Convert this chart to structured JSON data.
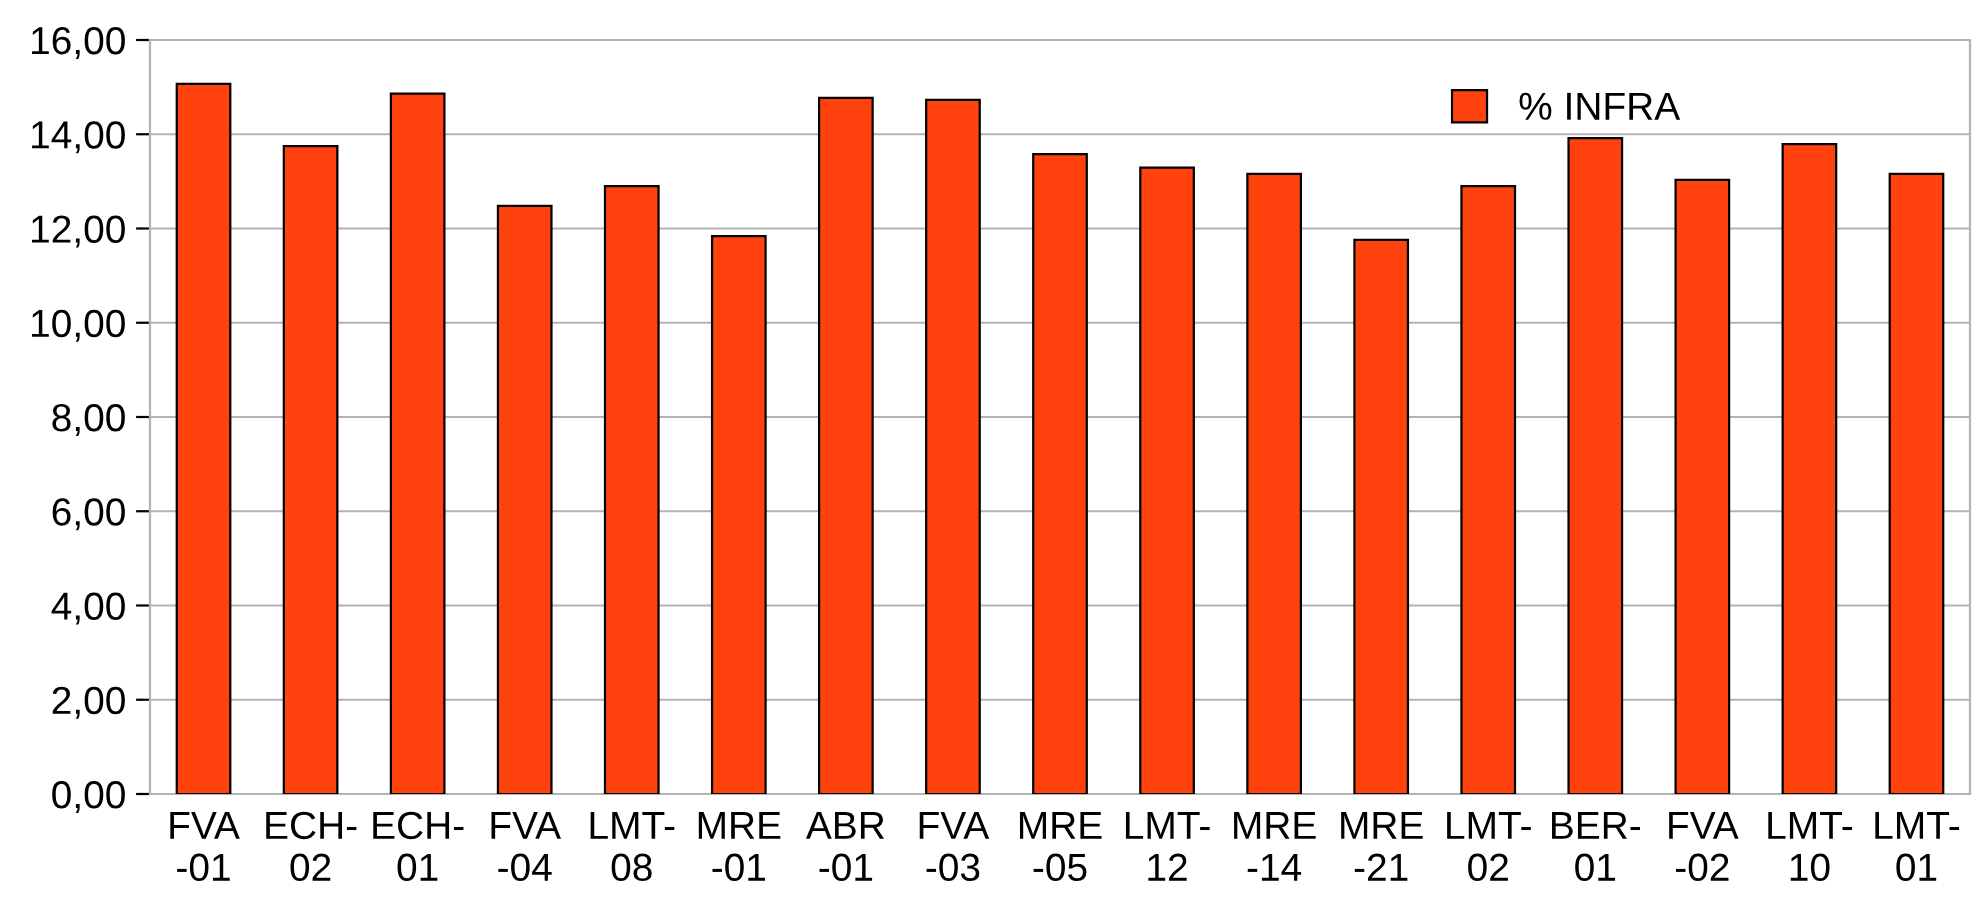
{
  "chart_data": {
    "type": "bar",
    "categories": [
      "FVA\n-01",
      "ECH-\n02",
      "ECH-\n01",
      "FVA\n-04",
      "LMT-\n08",
      "MRE\n-01",
      "ABR\n-01",
      "FVA\n-03",
      "MRE\n-05",
      "LMT-\n12",
      "MRE\n-14",
      "MRE\n-21",
      "LMT-\n02",
      "BER-\n01",
      "FVA\n-02",
      "LMT-\n10",
      "LMT-\n01"
    ],
    "series": [
      {
        "name": "% INFRA",
        "color": "#ff420e",
        "values": [
          15.07,
          13.75,
          14.86,
          12.48,
          12.9,
          11.84,
          14.77,
          14.73,
          13.58,
          13.29,
          13.16,
          11.76,
          12.9,
          13.92,
          13.03,
          13.79,
          13.16
        ]
      }
    ],
    "ylim": [
      0,
      16
    ],
    "yticks": [
      {
        "value": 0,
        "label": "0,00"
      },
      {
        "value": 2,
        "label": "2,00"
      },
      {
        "value": 4,
        "label": "4,00"
      },
      {
        "value": 6,
        "label": "6,00"
      },
      {
        "value": 8,
        "label": "8,00"
      },
      {
        "value": 10,
        "label": "10,00"
      },
      {
        "value": 12,
        "label": "12,00"
      },
      {
        "value": 14,
        "label": "14,00"
      },
      {
        "value": 16,
        "label": "16,00"
      }
    ],
    "grid": "y",
    "legend": "top right"
  }
}
